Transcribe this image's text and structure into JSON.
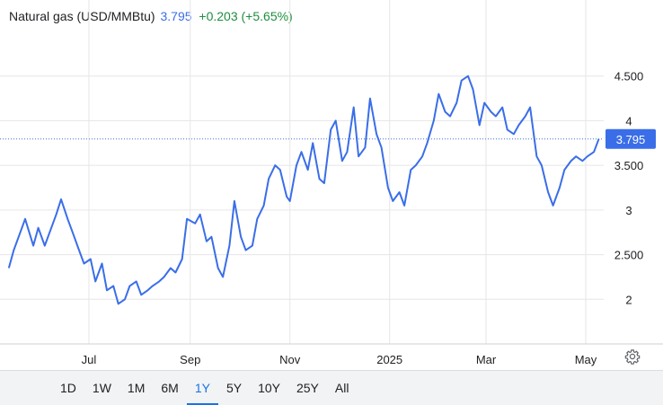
{
  "header": {
    "instrument": "Natural gas (USD/MMBtu)",
    "price": "3.795",
    "change": "+0.203 (+5.65%)"
  },
  "icons": {
    "settings": "gear-icon"
  },
  "colors": {
    "line": "#3a6ee8",
    "change_positive": "#1e8e3e",
    "grid": "#e6e6e6",
    "active_tab": "#1a73e8",
    "footer_bg": "#f1f3f4"
  },
  "range_selector": {
    "options": [
      "1D",
      "1W",
      "1M",
      "6M",
      "1Y",
      "5Y",
      "10Y",
      "25Y",
      "All"
    ],
    "selected": "1Y"
  },
  "chart_data": {
    "type": "line",
    "series": [
      {
        "x": [
          "2024-05-13",
          "2024-05-16",
          "2024-05-20",
          "2024-05-23",
          "2024-05-28",
          "2024-05-31",
          "2024-06-04",
          "2024-06-07",
          "2024-06-11",
          "2024-06-14",
          "2024-06-18",
          "2024-06-21",
          "2024-06-25",
          "2024-06-28",
          "2024-07-02",
          "2024-07-05",
          "2024-07-09",
          "2024-07-12",
          "2024-07-16",
          "2024-07-19",
          "2024-07-23",
          "2024-07-26",
          "2024-07-30",
          "2024-08-02",
          "2024-08-06",
          "2024-08-09",
          "2024-08-13",
          "2024-08-16",
          "2024-08-20",
          "2024-08-23",
          "2024-08-27",
          "2024-08-30",
          "2024-09-04",
          "2024-09-07",
          "2024-09-11",
          "2024-09-14",
          "2024-09-18",
          "2024-09-21",
          "2024-09-25",
          "2024-09-28",
          "2024-10-02",
          "2024-10-05",
          "2024-10-09",
          "2024-10-12",
          "2024-10-16",
          "2024-10-19",
          "2024-10-23",
          "2024-10-26",
          "2024-10-30",
          "2024-11-01",
          "2024-11-05",
          "2024-11-08",
          "2024-11-12",
          "2024-11-15",
          "2024-11-19",
          "2024-11-22",
          "2024-11-26",
          "2024-11-29",
          "2024-12-03",
          "2024-12-06",
          "2024-12-10",
          "2024-12-13",
          "2024-12-17",
          "2024-12-20",
          "2024-12-24",
          "2024-12-27",
          "2024-12-31",
          "2025-01-03",
          "2025-01-07",
          "2025-01-10",
          "2025-01-14",
          "2025-01-17",
          "2025-01-21",
          "2025-01-24",
          "2025-01-28",
          "2025-01-31",
          "2025-02-04",
          "2025-02-07",
          "2025-02-11",
          "2025-02-14",
          "2025-02-18",
          "2025-02-21",
          "2025-02-25",
          "2025-02-28",
          "2025-03-04",
          "2025-03-07",
          "2025-03-11",
          "2025-03-14",
          "2025-03-18",
          "2025-03-21",
          "2025-03-25",
          "2025-03-28",
          "2025-04-01",
          "2025-04-04",
          "2025-04-08",
          "2025-04-11",
          "2025-04-15",
          "2025-04-18",
          "2025-04-22",
          "2025-04-25",
          "2025-04-29",
          "2025-05-02",
          "2025-05-06",
          "2025-05-09"
        ],
        "values": [
          2.35,
          2.55,
          2.75,
          2.9,
          2.6,
          2.8,
          2.6,
          2.75,
          2.95,
          3.12,
          2.9,
          2.75,
          2.55,
          2.4,
          2.45,
          2.2,
          2.4,
          2.1,
          2.15,
          1.95,
          2.0,
          2.15,
          2.2,
          2.05,
          2.1,
          2.15,
          2.2,
          2.25,
          2.35,
          2.3,
          2.45,
          2.9,
          2.85,
          2.95,
          2.65,
          2.7,
          2.35,
          2.25,
          2.6,
          3.1,
          2.7,
          2.55,
          2.6,
          2.9,
          3.05,
          3.35,
          3.5,
          3.45,
          3.15,
          3.1,
          3.5,
          3.65,
          3.45,
          3.75,
          3.35,
          3.3,
          3.9,
          4.0,
          3.55,
          3.65,
          4.15,
          3.6,
          3.7,
          4.25,
          3.85,
          3.7,
          3.25,
          3.1,
          3.2,
          3.05,
          3.45,
          3.5,
          3.6,
          3.75,
          4.0,
          4.3,
          4.1,
          4.05,
          4.2,
          4.45,
          4.5,
          4.35,
          3.95,
          4.2,
          4.1,
          4.05,
          4.15,
          3.9,
          3.85,
          3.95,
          4.05,
          4.15,
          3.6,
          3.5,
          3.2,
          3.05,
          3.25,
          3.45,
          3.55,
          3.6,
          3.55,
          3.6,
          3.65,
          3.795
        ]
      }
    ],
    "xticks": [
      {
        "label": "Jul",
        "x": "2024-07-01"
      },
      {
        "label": "Sep",
        "x": "2024-09-01"
      },
      {
        "label": "Nov",
        "x": "2024-11-01"
      },
      {
        "label": "2025",
        "x": "2025-01-01"
      },
      {
        "label": "Mar",
        "x": "2025-03-01"
      },
      {
        "label": "May",
        "x": "2025-05-01"
      }
    ],
    "xlim": [
      "2024-05-12",
      "2025-05-12"
    ],
    "yticks": [
      {
        "label": "2",
        "value": 2
      },
      {
        "label": "2.500",
        "value": 2.5
      },
      {
        "label": "3",
        "value": 3
      },
      {
        "label": "3.500",
        "value": 3.5
      },
      {
        "label": "4",
        "value": 4
      },
      {
        "label": "4.500",
        "value": 4.5
      }
    ],
    "ylim": [
      1.5,
      5.0
    ],
    "last_value": 3.795,
    "last_value_label": "3.795",
    "grid": true
  }
}
